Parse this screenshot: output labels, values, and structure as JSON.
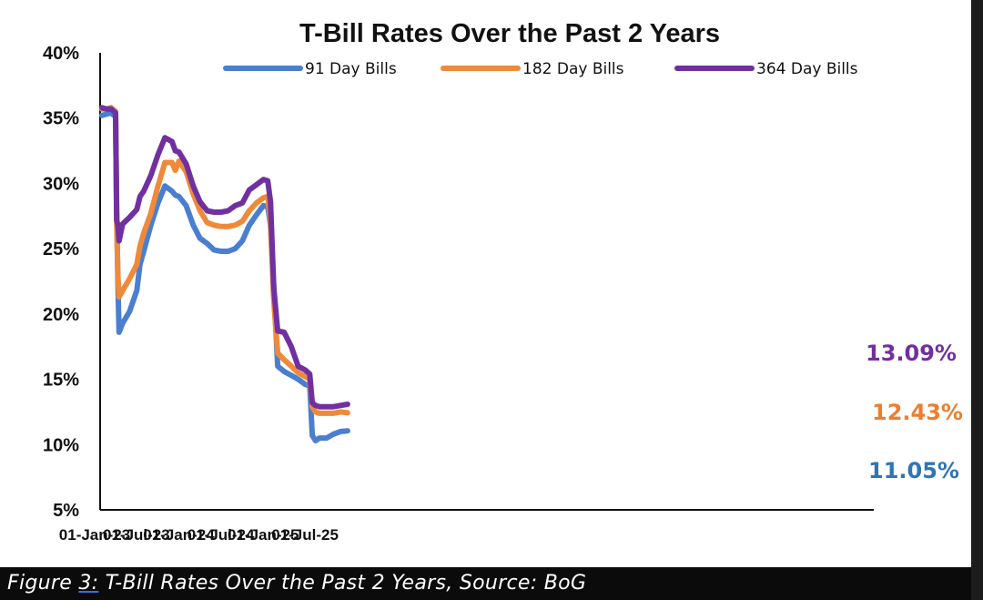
{
  "caption": {
    "prefix": "Figure ",
    "ref": "3:",
    "rest": " T-Bill Rates Over the Past 2 Years, Source: BoG"
  },
  "chart_data": {
    "type": "line",
    "title": "T-Bill Rates Over the Past 2 Years",
    "xlabel": "",
    "ylabel": "",
    "ylim": [
      5,
      40
    ],
    "y_ticks": [
      "5%",
      "10%",
      "15%",
      "20%",
      "25%",
      "30%",
      "35%",
      "40%"
    ],
    "x_ticks": [
      "01-Jan-23",
      "01-Jul-23",
      "01-Jan-24",
      "01-Jul-24",
      "01-Jan-25",
      "01-Jul-25"
    ],
    "xlim": [
      "2023-01-01",
      "2025-12-31"
    ],
    "grid": false,
    "legend_position": "top",
    "end_labels": [
      "13.09%",
      "12.43%",
      "11.05%"
    ],
    "series": [
      {
        "name": "91 Day Bills",
        "color": "#4a7fd0",
        "end_label_color": "#2e75b6",
        "end_label": "11.05%",
        "points": [
          [
            "2023-01-01",
            35.2
          ],
          [
            "2023-01-20",
            35.3
          ],
          [
            "2023-02-10",
            35.4
          ],
          [
            "2023-03-01",
            35.1
          ],
          [
            "2023-03-06",
            28.0
          ],
          [
            "2023-03-11",
            22.5
          ],
          [
            "2023-03-16",
            18.6
          ],
          [
            "2023-04-01",
            19.3
          ],
          [
            "2023-05-01",
            20.2
          ],
          [
            "2023-06-01",
            21.8
          ],
          [
            "2023-06-15",
            23.8
          ],
          [
            "2023-07-01",
            24.8
          ],
          [
            "2023-08-01",
            26.8
          ],
          [
            "2023-09-01",
            28.5
          ],
          [
            "2023-10-01",
            29.8
          ],
          [
            "2023-11-01",
            29.4
          ],
          [
            "2023-11-15",
            29.1
          ],
          [
            "2023-12-01",
            29.0
          ],
          [
            "2024-01-01",
            28.3
          ],
          [
            "2024-02-01",
            26.8
          ],
          [
            "2024-03-01",
            25.8
          ],
          [
            "2024-04-01",
            25.4
          ],
          [
            "2024-05-01",
            24.9
          ],
          [
            "2024-06-01",
            24.8
          ],
          [
            "2024-07-01",
            24.8
          ],
          [
            "2024-08-01",
            25.0
          ],
          [
            "2024-09-01",
            25.6
          ],
          [
            "2024-10-01",
            26.8
          ],
          [
            "2024-11-01",
            27.6
          ],
          [
            "2024-12-01",
            28.3
          ],
          [
            "2024-12-20",
            28.2
          ],
          [
            "2025-01-01",
            26.8
          ],
          [
            "2025-01-15",
            22.0
          ],
          [
            "2025-02-01",
            16.0
          ],
          [
            "2025-03-01",
            15.6
          ],
          [
            "2025-04-01",
            15.3
          ],
          [
            "2025-05-01",
            15.0
          ],
          [
            "2025-06-01",
            14.6
          ],
          [
            "2025-06-20",
            14.5
          ],
          [
            "2025-07-01",
            10.7
          ],
          [
            "2025-07-15",
            10.3
          ],
          [
            "2025-08-01",
            10.5
          ],
          [
            "2025-09-01",
            10.5
          ],
          [
            "2025-10-01",
            10.8
          ],
          [
            "2025-11-01",
            11.0
          ],
          [
            "2025-12-01",
            11.05
          ]
        ]
      },
      {
        "name": "182 Day Bills",
        "color": "#ef8a3b",
        "end_label_color": "#ed7d31",
        "end_label": "12.43%",
        "points": [
          [
            "2023-01-01",
            35.7
          ],
          [
            "2023-01-20",
            35.7
          ],
          [
            "2023-02-10",
            35.8
          ],
          [
            "2023-03-01",
            35.5
          ],
          [
            "2023-03-06",
            27.0
          ],
          [
            "2023-03-11",
            23.0
          ],
          [
            "2023-03-16",
            21.3
          ],
          [
            "2023-04-01",
            21.8
          ],
          [
            "2023-05-01",
            22.7
          ],
          [
            "2023-06-01",
            23.8
          ],
          [
            "2023-06-15",
            25.2
          ],
          [
            "2023-07-01",
            26.2
          ],
          [
            "2023-08-01",
            27.7
          ],
          [
            "2023-09-01",
            29.8
          ],
          [
            "2023-10-01",
            31.6
          ],
          [
            "2023-11-01",
            31.6
          ],
          [
            "2023-11-15",
            31.0
          ],
          [
            "2023-12-01",
            31.7
          ],
          [
            "2024-01-01",
            30.9
          ],
          [
            "2024-02-01",
            29.2
          ],
          [
            "2024-03-01",
            27.9
          ],
          [
            "2024-04-01",
            27.0
          ],
          [
            "2024-05-01",
            26.8
          ],
          [
            "2024-06-01",
            26.7
          ],
          [
            "2024-07-01",
            26.7
          ],
          [
            "2024-08-01",
            26.8
          ],
          [
            "2024-09-01",
            27.1
          ],
          [
            "2024-10-01",
            27.9
          ],
          [
            "2024-11-01",
            28.5
          ],
          [
            "2024-12-01",
            28.9
          ],
          [
            "2024-12-20",
            29.0
          ],
          [
            "2025-01-01",
            27.0
          ],
          [
            "2025-01-15",
            21.0
          ],
          [
            "2025-02-01",
            17.0
          ],
          [
            "2025-03-01",
            16.5
          ],
          [
            "2025-04-01",
            16.0
          ],
          [
            "2025-05-01",
            15.5
          ],
          [
            "2025-06-01",
            15.2
          ],
          [
            "2025-06-20",
            15.0
          ],
          [
            "2025-07-01",
            12.9
          ],
          [
            "2025-07-15",
            12.5
          ],
          [
            "2025-08-01",
            12.4
          ],
          [
            "2025-09-01",
            12.4
          ],
          [
            "2025-10-01",
            12.4
          ],
          [
            "2025-11-01",
            12.5
          ],
          [
            "2025-12-01",
            12.43
          ]
        ]
      },
      {
        "name": "364 Day Bills",
        "color": "#7030a0",
        "end_label_color": "#7030a0",
        "end_label": "13.09%",
        "points": [
          [
            "2023-01-01",
            35.8
          ],
          [
            "2023-01-20",
            35.7
          ],
          [
            "2023-02-10",
            35.7
          ],
          [
            "2023-03-01",
            35.4
          ],
          [
            "2023-03-06",
            27.2
          ],
          [
            "2023-03-11",
            26.8
          ],
          [
            "2023-03-16",
            25.6
          ],
          [
            "2023-04-01",
            26.9
          ],
          [
            "2023-05-01",
            27.4
          ],
          [
            "2023-06-01",
            28.0
          ],
          [
            "2023-06-15",
            29.0
          ],
          [
            "2023-07-01",
            29.4
          ],
          [
            "2023-08-01",
            30.6
          ],
          [
            "2023-09-01",
            32.2
          ],
          [
            "2023-10-01",
            33.5
          ],
          [
            "2023-11-01",
            33.2
          ],
          [
            "2023-11-15",
            32.5
          ],
          [
            "2023-12-01",
            32.4
          ],
          [
            "2024-01-01",
            31.5
          ],
          [
            "2024-02-01",
            29.8
          ],
          [
            "2024-03-01",
            28.6
          ],
          [
            "2024-04-01",
            27.9
          ],
          [
            "2024-05-01",
            27.8
          ],
          [
            "2024-06-01",
            27.8
          ],
          [
            "2024-07-01",
            27.9
          ],
          [
            "2024-08-01",
            28.3
          ],
          [
            "2024-09-01",
            28.5
          ],
          [
            "2024-10-01",
            29.5
          ],
          [
            "2024-11-01",
            29.9
          ],
          [
            "2024-12-01",
            30.3
          ],
          [
            "2024-12-20",
            30.2
          ],
          [
            "2025-01-01",
            28.6
          ],
          [
            "2025-01-15",
            22.0
          ],
          [
            "2025-02-01",
            18.7
          ],
          [
            "2025-03-01",
            18.6
          ],
          [
            "2025-04-01",
            17.5
          ],
          [
            "2025-05-01",
            16.0
          ],
          [
            "2025-06-01",
            15.7
          ],
          [
            "2025-06-20",
            15.4
          ],
          [
            "2025-07-01",
            13.2
          ],
          [
            "2025-07-15",
            13.0
          ],
          [
            "2025-08-01",
            12.9
          ],
          [
            "2025-09-01",
            12.9
          ],
          [
            "2025-10-01",
            12.9
          ],
          [
            "2025-11-01",
            13.0
          ],
          [
            "2025-12-01",
            13.09
          ]
        ]
      }
    ]
  }
}
